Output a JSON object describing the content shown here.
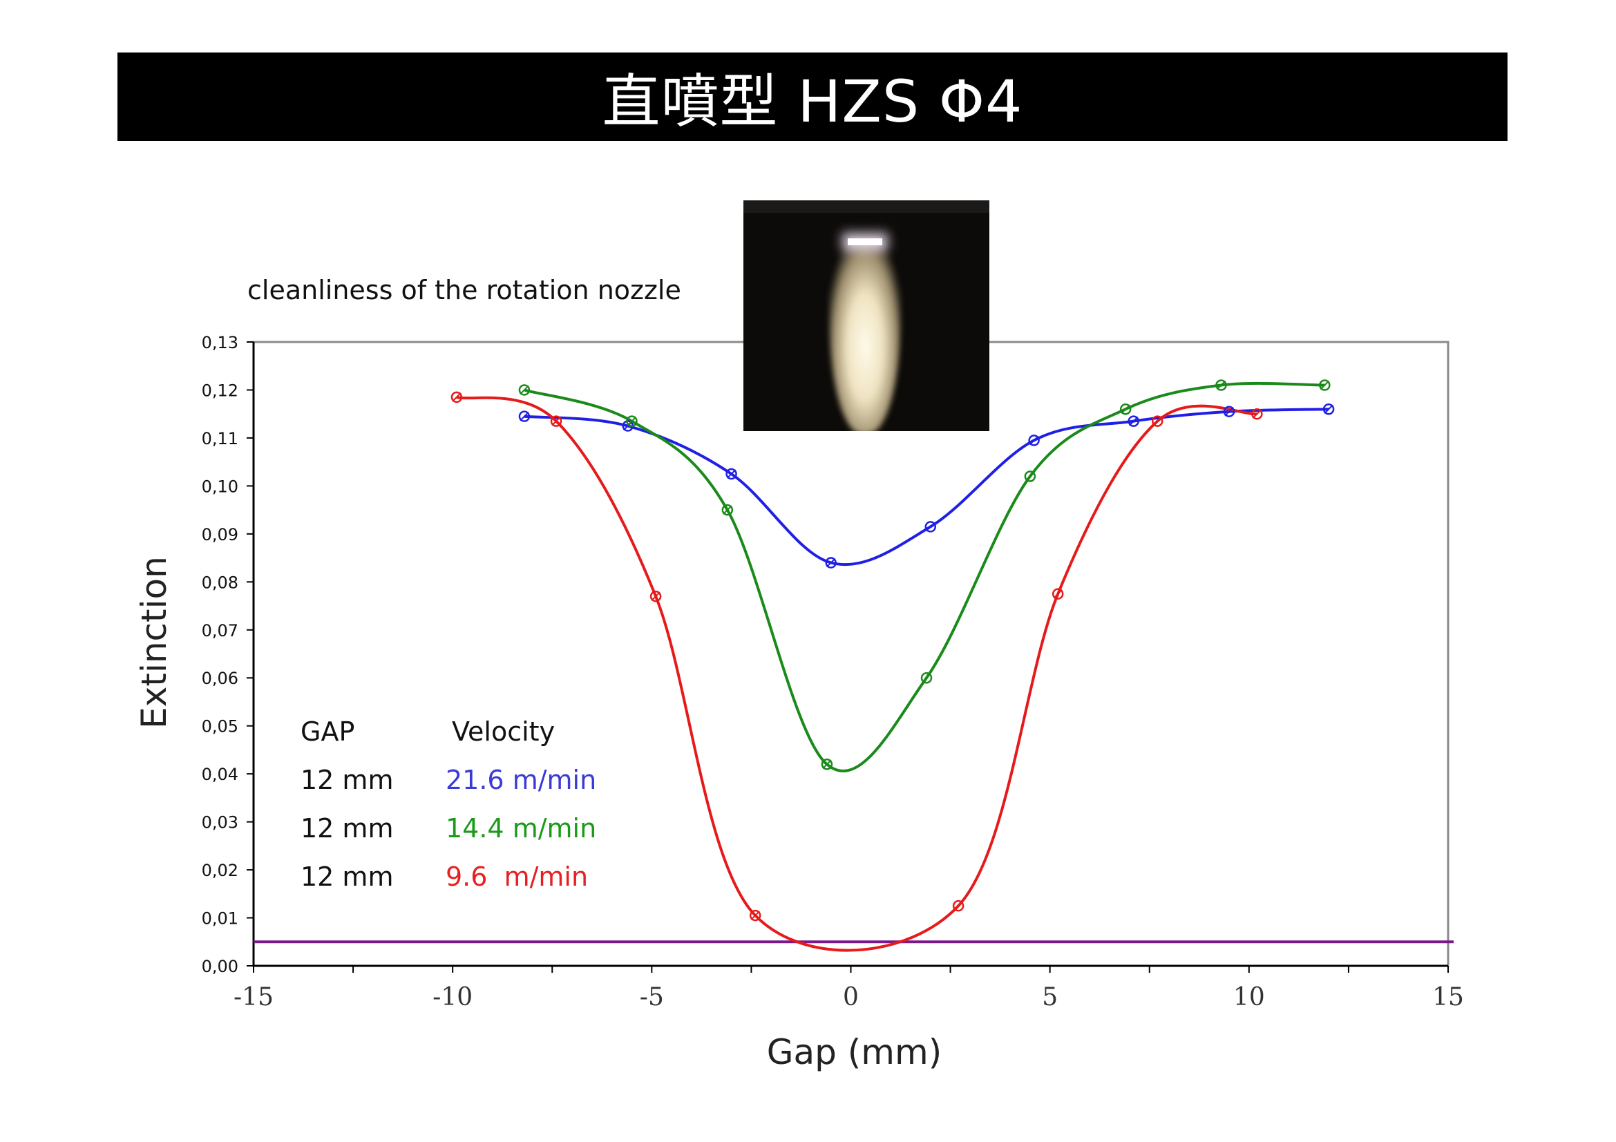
{
  "page": {
    "title": "直噴型 HZS Φ4"
  },
  "figure": {
    "photo_icon": "nozzle-spray-photo"
  },
  "chart_data": {
    "type": "line",
    "title": "cleanliness of the rotation nozzle",
    "xlabel": "Gap (mm)",
    "ylabel": "Extinction",
    "xlim": [
      -15,
      15
    ],
    "ylim": [
      0,
      0.13
    ],
    "xticks": [
      -15,
      -10,
      -5,
      0,
      5,
      10,
      15
    ],
    "xtick_labels": [
      "-15",
      "-10",
      "-5",
      "0",
      "5",
      "10",
      "15"
    ],
    "yticks": [
      0,
      0.01,
      0.02,
      0.03,
      0.04,
      0.05,
      0.06,
      0.07,
      0.08,
      0.09,
      0.1,
      0.11,
      0.12,
      0.13
    ],
    "ytick_labels": [
      "0,00",
      "0,01",
      "0,02",
      "0,03",
      "0,04",
      "0,05",
      "0,06",
      "0,07",
      "0,08",
      "0,09",
      "0,10",
      "0,11",
      "0,12",
      "0,13"
    ],
    "grid": false,
    "series": [
      {
        "color": "#1f1fe6",
        "x": [
          -8.2,
          -5.6,
          -3.0,
          -0.5,
          2.0,
          4.6,
          7.1,
          9.5,
          12.0
        ],
        "y": [
          0.1145,
          0.1125,
          0.1025,
          0.084,
          0.0915,
          0.1095,
          0.1135,
          0.1155,
          0.116
        ]
      },
      {
        "color": "#1a8a1a",
        "x": [
          -8.2,
          -5.5,
          -3.1,
          -0.6,
          1.9,
          4.5,
          6.9,
          9.3,
          11.9
        ],
        "y": [
          0.12,
          0.1135,
          0.095,
          0.042,
          0.06,
          0.102,
          0.116,
          0.121,
          0.121
        ]
      },
      {
        "color": "#e61a1a",
        "x": [
          -9.9,
          -7.4,
          -4.9,
          -2.4,
          2.7,
          5.2,
          7.7,
          10.2
        ],
        "y": [
          0.1185,
          0.1135,
          0.077,
          0.0105,
          0.0125,
          0.0775,
          0.1135,
          0.115
        ]
      }
    ],
    "reference_line": {
      "y": 0.005,
      "color": "#7a1a8a"
    },
    "legend": {
      "header_gap": "GAP",
      "header_velocity": "Velocity",
      "rows": [
        {
          "gap": "12 mm",
          "velocity": "21.6 m/min",
          "color": "#3a3ad6"
        },
        {
          "gap": "12 mm",
          "velocity": "14.4 m/min",
          "color": "#1a9a1a"
        },
        {
          "gap": "12 mm",
          "velocity": "9.6  m/min",
          "color": "#e62020"
        }
      ]
    }
  }
}
